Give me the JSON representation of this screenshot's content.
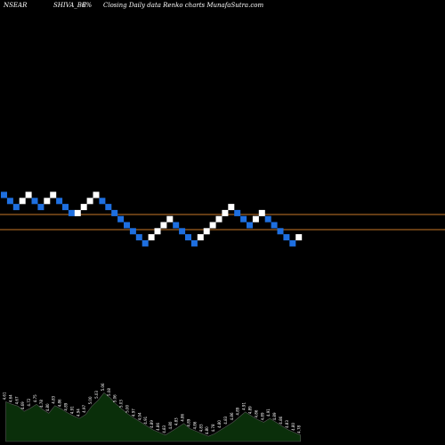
{
  "header": {
    "exchange": "NSEAR",
    "symbol": "SHIVA_BE",
    "change": "0%",
    "description": "Closing Daily data  Renko  charts MunafaSutra.com"
  },
  "colors": {
    "background": "#000000",
    "up_brick": "#ffffff",
    "down_brick": "#1e6fe0",
    "level_line": "#c87828",
    "volume_area": "#0a2f0a",
    "volume_line": "#555555"
  },
  "chart_data": {
    "type": "renko",
    "title": "",
    "levels": [
      "upper",
      "lower"
    ],
    "bricks": [
      {
        "dir": "down",
        "step": 0
      },
      {
        "dir": "down",
        "step": 1
      },
      {
        "dir": "down",
        "step": 2
      },
      {
        "dir": "up",
        "step": 1
      },
      {
        "dir": "up",
        "step": 0
      },
      {
        "dir": "down",
        "step": 1
      },
      {
        "dir": "down",
        "step": 2
      },
      {
        "dir": "up",
        "step": 1
      },
      {
        "dir": "up",
        "step": 0
      },
      {
        "dir": "down",
        "step": 1
      },
      {
        "dir": "down",
        "step": 2
      },
      {
        "dir": "down",
        "step": 3
      },
      {
        "dir": "up",
        "step": 3
      },
      {
        "dir": "up",
        "step": 2
      },
      {
        "dir": "up",
        "step": 1
      },
      {
        "dir": "up",
        "step": 0
      },
      {
        "dir": "down",
        "step": 1
      },
      {
        "dir": "down",
        "step": 2
      },
      {
        "dir": "down",
        "step": 3
      },
      {
        "dir": "down",
        "step": 4
      },
      {
        "dir": "down",
        "step": 5
      },
      {
        "dir": "down",
        "step": 6
      },
      {
        "dir": "down",
        "step": 7
      },
      {
        "dir": "down",
        "step": 8
      },
      {
        "dir": "up",
        "step": 7
      },
      {
        "dir": "up",
        "step": 6
      },
      {
        "dir": "up",
        "step": 5
      },
      {
        "dir": "up",
        "step": 4
      },
      {
        "dir": "down",
        "step": 5
      },
      {
        "dir": "down",
        "step": 6
      },
      {
        "dir": "down",
        "step": 7
      },
      {
        "dir": "down",
        "step": 8
      },
      {
        "dir": "up",
        "step": 7
      },
      {
        "dir": "up",
        "step": 6
      },
      {
        "dir": "up",
        "step": 5
      },
      {
        "dir": "up",
        "step": 4
      },
      {
        "dir": "up",
        "step": 3
      },
      {
        "dir": "up",
        "step": 2
      },
      {
        "dir": "down",
        "step": 3
      },
      {
        "dir": "down",
        "step": 4
      },
      {
        "dir": "down",
        "step": 5
      },
      {
        "dir": "up",
        "step": 4
      },
      {
        "dir": "up",
        "step": 3
      },
      {
        "dir": "down",
        "step": 4
      },
      {
        "dir": "down",
        "step": 5
      },
      {
        "dir": "down",
        "step": 6
      },
      {
        "dir": "down",
        "step": 7
      },
      {
        "dir": "down",
        "step": 8
      },
      {
        "dir": "up",
        "step": 7
      }
    ],
    "volume": [
      {
        "label": "4.61",
        "v": 0.62
      },
      {
        "label": "4.64",
        "v": 0.58
      },
      {
        "label": "4.67",
        "v": 0.55
      },
      {
        "label": "4.69",
        "v": 0.47
      },
      {
        "label": "4.72",
        "v": 0.52
      },
      {
        "label": "4.75",
        "v": 0.58
      },
      {
        "label": "4.78",
        "v": 0.5
      },
      {
        "label": "4.80",
        "v": 0.44
      },
      {
        "label": "4.83",
        "v": 0.56
      },
      {
        "label": "4.86",
        "v": 0.51
      },
      {
        "label": "4.89",
        "v": 0.45
      },
      {
        "label": "4.91",
        "v": 0.4
      },
      {
        "label": "4.94",
        "v": 0.36
      },
      {
        "label": "4.97",
        "v": 0.42
      },
      {
        "label": "5.00",
        "v": 0.55
      },
      {
        "label": "5.03",
        "v": 0.64
      },
      {
        "label": "5.06",
        "v": 0.76
      },
      {
        "label": "5.08",
        "v": 0.68
      },
      {
        "label": "5.06",
        "v": 0.58
      },
      {
        "label": "5.03",
        "v": 0.5
      },
      {
        "label": "5.00",
        "v": 0.42
      },
      {
        "label": "4.97",
        "v": 0.36
      },
      {
        "label": "4.94",
        "v": 0.3
      },
      {
        "label": "4.91",
        "v": 0.24
      },
      {
        "label": "4.89",
        "v": 0.18
      },
      {
        "label": "4.86",
        "v": 0.14
      },
      {
        "label": "4.83",
        "v": 0.1
      },
      {
        "label": "4.80",
        "v": 0.16
      },
      {
        "label": "4.83",
        "v": 0.22
      },
      {
        "label": "4.86",
        "v": 0.28
      },
      {
        "label": "4.89",
        "v": 0.2
      },
      {
        "label": "4.86",
        "v": 0.16
      },
      {
        "label": "4.83",
        "v": 0.12
      },
      {
        "label": "4.80",
        "v": 0.08
      },
      {
        "label": "4.78",
        "v": 0.12
      },
      {
        "label": "4.80",
        "v": 0.18
      },
      {
        "label": "4.83",
        "v": 0.24
      },
      {
        "label": "4.86",
        "v": 0.3
      },
      {
        "label": "4.89",
        "v": 0.38
      },
      {
        "label": "4.91",
        "v": 0.46
      },
      {
        "label": "4.89",
        "v": 0.4
      },
      {
        "label": "4.86",
        "v": 0.34
      },
      {
        "label": "4.89",
        "v": 0.3
      },
      {
        "label": "4.91",
        "v": 0.36
      },
      {
        "label": "4.89",
        "v": 0.3
      },
      {
        "label": "4.86",
        "v": 0.24
      },
      {
        "label": "4.83",
        "v": 0.18
      },
      {
        "label": "4.80",
        "v": 0.14
      },
      {
        "label": "4.78",
        "v": 0.1
      }
    ]
  }
}
